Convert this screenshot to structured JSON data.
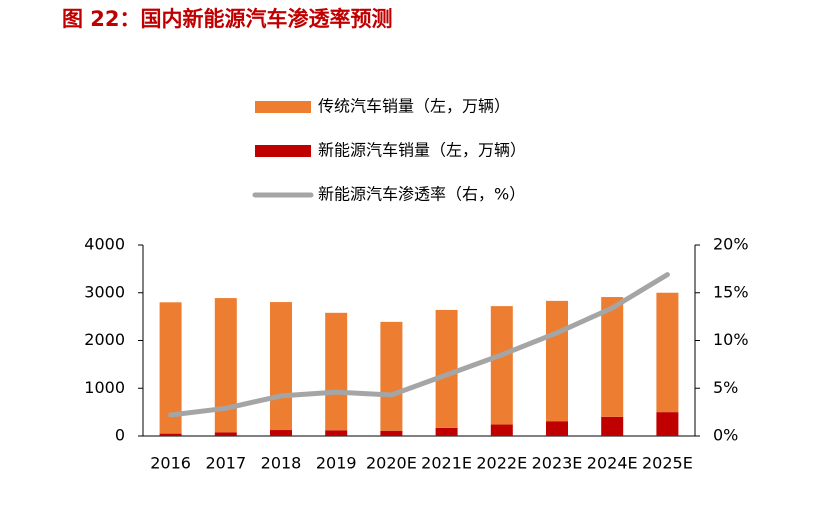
{
  "chart_data": {
    "type": "bar",
    "stacked": true,
    "title": "图 22：国内新能源汽车渗透率预测",
    "categories": [
      "2016",
      "2017",
      "2018",
      "2019",
      "2020E",
      "2021E",
      "2022E",
      "2023E",
      "2024E",
      "2025E"
    ],
    "series": [
      {
        "name": "传统汽车销量（左，万辆）",
        "color": "#ed7d31",
        "type": "bar",
        "axis": "y",
        "stack_order": 1,
        "values": [
          2750,
          2810,
          2680,
          2460,
          2280,
          2470,
          2480,
          2520,
          2510,
          2500
        ]
      },
      {
        "name": "新能源汽车销量（左，万辆）",
        "color": "#c00000",
        "type": "bar",
        "axis": "y",
        "stack_order": 0,
        "values": [
          50,
          78,
          125,
          120,
          110,
          170,
          240,
          310,
          400,
          500
        ]
      },
      {
        "name": "新能源汽车渗透率（右，%）",
        "color": "#a5a5a5",
        "type": "line",
        "axis": "y2",
        "values": [
          2.2,
          2.9,
          4.2,
          4.6,
          4.3,
          6.4,
          8.5,
          10.8,
          13.4,
          16.9
        ]
      }
    ],
    "ylim": [
      0,
      4000
    ],
    "yticks": [
      0,
      1000,
      2000,
      3000,
      4000
    ],
    "y2lim": [
      0,
      20
    ],
    "y2ticks": [
      {
        "value": 0,
        "label": "0%"
      },
      {
        "value": 5,
        "label": "5%"
      },
      {
        "value": 10,
        "label": "10%"
      },
      {
        "value": 15,
        "label": "15%"
      },
      {
        "value": 20,
        "label": "20%"
      }
    ]
  }
}
